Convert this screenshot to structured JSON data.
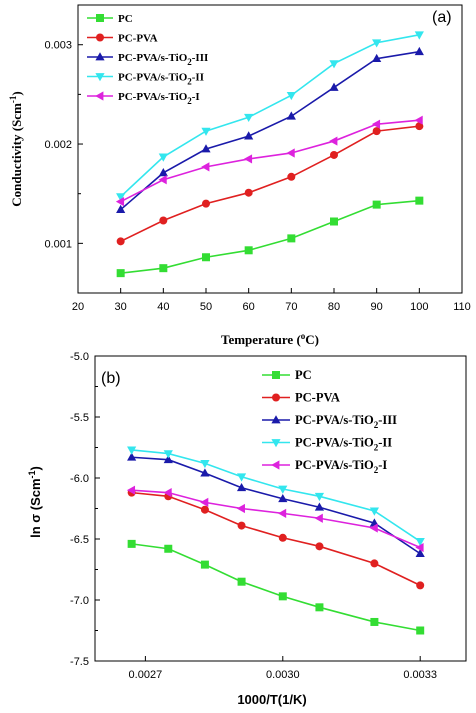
{
  "chart_data": [
    {
      "type": "line",
      "panel_label": "(a)",
      "title": "",
      "xlabel": "Temperature (°C)",
      "xlabel_main": "Temperature (",
      "xlabel_sup": "o",
      "xlabel_end": "C)",
      "ylabel": "Conductivity (Scm⁻¹)",
      "ylabel_main": "Conductivity (Scm",
      "ylabel_sup": "-1",
      "ylabel_end": ")",
      "xlim": [
        20,
        110
      ],
      "ylim": [
        0.0005,
        0.0034
      ],
      "xticks": [
        20,
        30,
        40,
        50,
        60,
        70,
        80,
        90,
        100,
        110
      ],
      "yticks": [
        0.001,
        0.002,
        0.003
      ],
      "ytick_labels": [
        "0.001",
        "0.002",
        "0.003"
      ],
      "legend_position": "top-left",
      "x": [
        30,
        40,
        50,
        60,
        70,
        80,
        90,
        100
      ],
      "series": [
        {
          "name": "PC",
          "name_main": "PC",
          "name_sub": "",
          "name_end": "",
          "color": "#33dd33",
          "marker": "square",
          "values": [
            0.0007,
            0.00075,
            0.00086,
            0.00093,
            0.00105,
            0.00122,
            0.00139,
            0.00143
          ]
        },
        {
          "name": "PC-PVA",
          "name_main": "PC-PVA",
          "name_sub": "",
          "name_end": "",
          "color": "#e02020",
          "marker": "circle",
          "values": [
            0.00102,
            0.00123,
            0.0014,
            0.00151,
            0.00167,
            0.00189,
            0.00213,
            0.00218
          ]
        },
        {
          "name": "PC-PVA/s-TiO2-III",
          "name_main": "PC-PVA/s-TiO",
          "name_sub": "2",
          "name_end": "-III",
          "color": "#1a1aaa",
          "marker": "triangle-up",
          "values": [
            0.00134,
            0.00171,
            0.00195,
            0.00208,
            0.00228,
            0.00257,
            0.00286,
            0.00293
          ]
        },
        {
          "name": "PC-PVA/s-TiO2-II",
          "name_main": "PC-PVA/s-TiO",
          "name_sub": "2",
          "name_end": "-II",
          "color": "#33e6ee",
          "marker": "triangle-down",
          "values": [
            0.00147,
            0.00187,
            0.00213,
            0.00227,
            0.00249,
            0.00281,
            0.00302,
            0.0031
          ]
        },
        {
          "name": "PC-PVA/s-TiO2-I",
          "name_main": "PC-PVA/s-TiO",
          "name_sub": "2",
          "name_end": "-I",
          "color": "#dd22dd",
          "marker": "triangle-left",
          "values": [
            0.00142,
            0.00164,
            0.00177,
            0.00185,
            0.00191,
            0.00203,
            0.0022,
            0.00224
          ]
        }
      ]
    },
    {
      "type": "line",
      "panel_label": "(b)",
      "title": "",
      "xlabel": "1000/T(1/K)",
      "ylabel": "ln σ (Scm⁻¹)",
      "ylabel_main": "ln σ (Scm",
      "ylabel_sup": "-1",
      "ylabel_end": ")",
      "xlim": [
        0.00259,
        0.0034
      ],
      "ylim": [
        -7.5,
        -5.0
      ],
      "xticks": [
        0.0027,
        0.003,
        0.0033
      ],
      "xtick_labels": [
        "0.0027",
        "0.0030",
        "0.0033"
      ],
      "yticks": [
        -7.5,
        -7.0,
        -6.5,
        -6.0,
        -5.5,
        -5.0
      ],
      "ytick_labels": [
        "-7.5",
        "-7.0",
        "-6.5",
        "-6.0",
        "-5.5",
        "-5.0"
      ],
      "legend_position": "top-right",
      "x": [
        0.00267,
        0.00275,
        0.00283,
        0.00291,
        0.003,
        0.00308,
        0.0032,
        0.0033
      ],
      "series": [
        {
          "name": "PC",
          "name_main": "PC",
          "name_sub": "",
          "name_end": "",
          "color": "#33dd33",
          "marker": "square",
          "values": [
            -6.54,
            -6.58,
            -6.71,
            -6.85,
            -6.97,
            -7.06,
            -7.18,
            -7.25
          ]
        },
        {
          "name": "PC-PVA",
          "name_main": "PC-PVA",
          "name_sub": "",
          "name_end": "",
          "color": "#e02020",
          "marker": "circle",
          "values": [
            -6.12,
            -6.15,
            -6.26,
            -6.39,
            -6.49,
            -6.56,
            -6.7,
            -6.88
          ]
        },
        {
          "name": "PC-PVA/s-TiO2-III",
          "name_main": "PC-PVA/s-TiO",
          "name_sub": "2",
          "name_end": "-III",
          "color": "#1a1aaa",
          "marker": "triangle-up",
          "values": [
            -5.83,
            -5.85,
            -5.96,
            -6.08,
            -6.17,
            -6.24,
            -6.37,
            -6.62
          ]
        },
        {
          "name": "PC-PVA/s-TiO2-II",
          "name_main": "PC-PVA/s-TiO",
          "name_sub": "2",
          "name_end": "-II",
          "color": "#33e6ee",
          "marker": "triangle-down",
          "values": [
            -5.77,
            -5.8,
            -5.88,
            -5.99,
            -6.09,
            -6.15,
            -6.27,
            -6.52
          ]
        },
        {
          "name": "PC-PVA/s-TiO2-I",
          "name_main": "PC-PVA/s-TiO",
          "name_sub": "2",
          "name_end": "-I",
          "color": "#dd22dd",
          "marker": "triangle-left",
          "values": [
            -6.1,
            -6.12,
            -6.2,
            -6.25,
            -6.29,
            -6.33,
            -6.41,
            -6.57
          ]
        }
      ]
    }
  ]
}
